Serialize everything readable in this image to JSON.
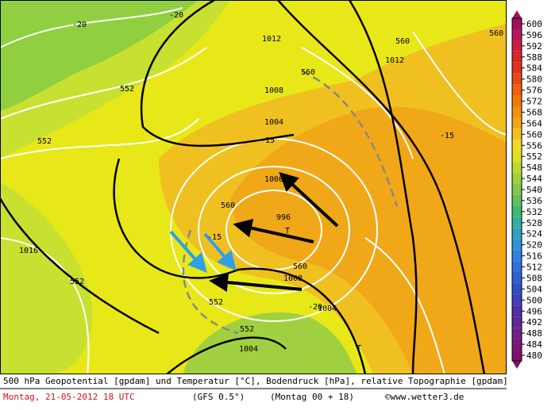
{
  "map": {
    "contour_labels": [
      "-20",
      "-20",
      "1012",
      "560",
      "1012",
      "560",
      "560",
      "1008",
      "552",
      "1004",
      "-15",
      "-15",
      "552",
      "1000",
      "560",
      "996",
      "T",
      "-15",
      "1016",
      "552",
      "560",
      "1008",
      "552",
      "-20",
      "1004",
      "552",
      "1004",
      "T"
    ]
  },
  "colorbar": {
    "ticks": [
      600,
      596,
      592,
      588,
      584,
      580,
      576,
      572,
      568,
      564,
      560,
      556,
      552,
      548,
      544,
      540,
      536,
      532,
      528,
      524,
      520,
      516,
      512,
      508,
      504,
      500,
      496,
      492,
      488,
      484,
      480
    ],
    "colors": [
      "#a0105a",
      "#b8185a",
      "#c82040",
      "#d82828",
      "#e03020",
      "#e84818",
      "#f06010",
      "#f07808",
      "#f09010",
      "#f0a818",
      "#f0c020",
      "#f0d828",
      "#e0e020",
      "#c0d830",
      "#a0d040",
      "#80c850",
      "#60c060",
      "#40b870",
      "#30b0a0",
      "#30a0c0",
      "#3090d8",
      "#3080e0",
      "#3070e0",
      "#3060d8",
      "#3050c8",
      "#4040b8",
      "#5030a8",
      "#602898",
      "#702088",
      "#781878",
      "#801068"
    ]
  },
  "footer": {
    "description": "500 hPa Geopotential [gpdam] und Temperatur [°C], Bodendruck [hPa], relative Topographie [gpdam]",
    "date": "Montag, 21-05-2012  18 UTC",
    "model": "(GFS 0.5°)",
    "run": "(Montag 00 + 18)",
    "copyright": "©www.wetter3.de"
  }
}
